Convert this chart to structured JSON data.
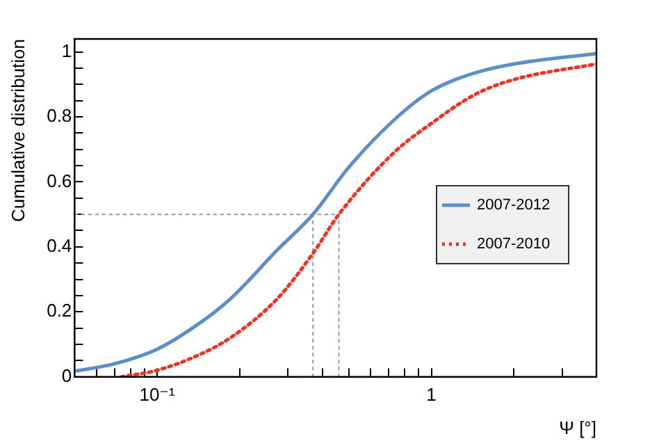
{
  "chart_data": {
    "type": "line",
    "xlabel": "Ψ [°]",
    "ylabel": "Cumulative distribution",
    "log": "x",
    "xlim": [
      0.05,
      4
    ],
    "ylim": [
      0,
      1.04
    ],
    "xticks": [
      {
        "value": 0.05,
        "label": null
      },
      {
        "value": 0.06,
        "label": null
      },
      {
        "value": 0.07,
        "label": null
      },
      {
        "value": 0.08,
        "label": null
      },
      {
        "value": 0.09,
        "label": null
      },
      {
        "value": 0.1,
        "label": "10⁻¹"
      },
      {
        "value": 0.2,
        "label": null
      },
      {
        "value": 0.3,
        "label": null
      },
      {
        "value": 0.4,
        "label": null
      },
      {
        "value": 0.5,
        "label": null
      },
      {
        "value": 0.6,
        "label": null
      },
      {
        "value": 0.7,
        "label": null
      },
      {
        "value": 0.8,
        "label": null
      },
      {
        "value": 0.9,
        "label": null
      },
      {
        "value": 1,
        "label": "1"
      },
      {
        "value": 2,
        "label": null
      },
      {
        "value": 3,
        "label": null
      },
      {
        "value": 4,
        "label": null
      }
    ],
    "yticks": [
      0,
      {
        "value": 0.05,
        "label": null
      },
      {
        "value": 0.1,
        "label": null
      },
      {
        "value": 0.15,
        "label": null
      },
      0.2,
      {
        "value": 0.25,
        "label": null
      },
      {
        "value": 0.3,
        "label": null
      },
      {
        "value": 0.35,
        "label": null
      },
      0.4,
      {
        "value": 0.45,
        "label": null
      },
      {
        "value": 0.5,
        "label": null
      },
      {
        "value": 0.55,
        "label": null
      },
      0.6,
      {
        "value": 0.65,
        "label": null
      },
      {
        "value": 0.7,
        "label": null
      },
      {
        "value": 0.75,
        "label": null
      },
      0.8,
      {
        "value": 0.85,
        "label": null
      },
      {
        "value": 0.9,
        "label": null
      },
      {
        "value": 0.95,
        "label": null
      },
      1
    ],
    "grid": false,
    "legend": "right",
    "marker": "none",
    "series": [
      {
        "name": "2007-2012",
        "color": "#5b8fc9",
        "line_style": "solid",
        "x": [
          0.05,
          0.07,
          0.1,
          0.14,
          0.185,
          0.274,
          0.37,
          0.5,
          0.73,
          1,
          1.45,
          2,
          4
        ],
        "values": [
          0.017,
          0.04,
          0.085,
          0.16,
          0.24,
          0.39,
          0.5,
          0.645,
          0.79,
          0.88,
          0.936,
          0.963,
          0.995
        ]
      },
      {
        "name": "2007-2010",
        "color": "#ee3322",
        "line_style": "dotted",
        "x": [
          0.074,
          0.1,
          0.14,
          0.185,
          0.274,
          0.37,
          0.46,
          0.73,
          1,
          1.45,
          2,
          4
        ],
        "values": [
          0,
          0.02,
          0.065,
          0.12,
          0.24,
          0.38,
          0.5,
          0.69,
          0.78,
          0.87,
          0.915,
          0.963
        ]
      },
      {
        "color": "#999999",
        "line_style": "dotted",
        "x": [
          0.05,
          0.46
        ],
        "values": [
          0.5,
          0.5
        ]
      },
      {
        "color": "#999999",
        "line_style": "dotted",
        "x": [
          0.37,
          0.37
        ],
        "values": [
          0,
          0.5
        ]
      },
      {
        "color": "#999999",
        "line_style": "dotted",
        "x": [
          0.46,
          0.46
        ],
        "values": [
          0,
          0.5
        ]
      }
    ]
  }
}
